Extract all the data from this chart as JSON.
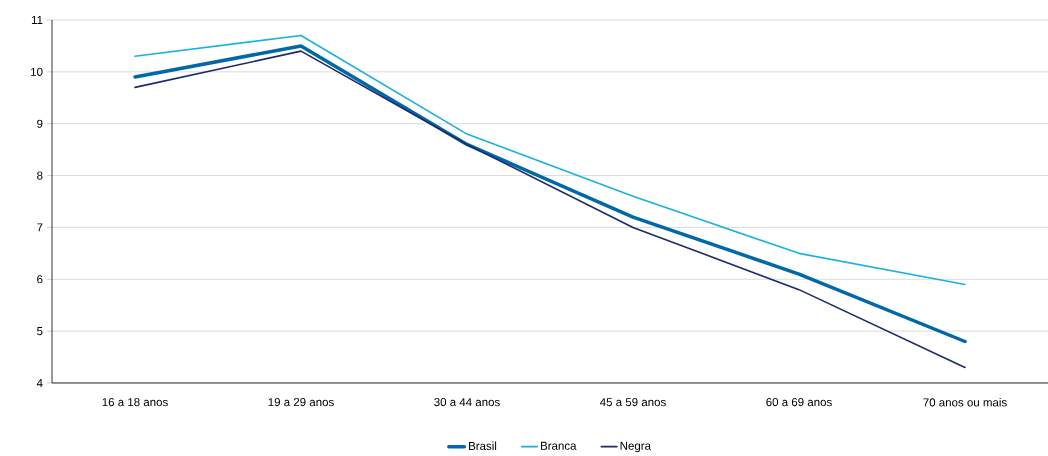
{
  "chart_data": {
    "type": "line",
    "categories": [
      "16 a 18 anos",
      "19 a 29 anos",
      "30 a 44 anos",
      "45 a 59 anos",
      "60 a 69 anos",
      "70 anos ou mais"
    ],
    "series": [
      {
        "name": "Brasil",
        "color": "#0068a8",
        "values": [
          9.9,
          10.5,
          8.6,
          7.2,
          6.1,
          4.8
        ]
      },
      {
        "name": "Branca",
        "color": "#1ab0e0",
        "values": [
          10.3,
          10.7,
          8.8,
          7.6,
          6.5,
          5.9
        ]
      },
      {
        "name": "Negra",
        "color": "#1a2a6c",
        "values": [
          9.7,
          10.4,
          8.6,
          7.0,
          5.8,
          4.3
        ]
      }
    ],
    "ylim": [
      4,
      11
    ],
    "yticks": [
      4,
      5,
      6,
      7,
      8,
      9,
      10,
      11
    ],
    "grid": "y",
    "legend": "bottom",
    "marker": "none",
    "line_style": "solid"
  }
}
